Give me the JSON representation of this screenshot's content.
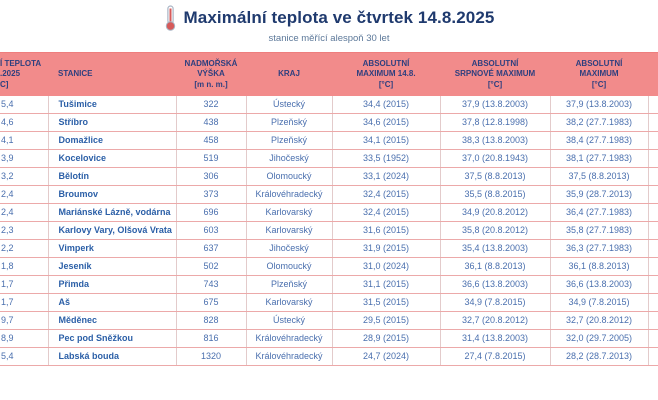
{
  "page": {
    "title": "Maximální teplota ve čtvrtek 14.8.2025",
    "subtitle": "stanice měřící alespoň 30 let",
    "icon": "thermometer-icon"
  },
  "colors": {
    "header_bg": "#F28B8B",
    "header_top_border": "#EE7E7E",
    "title_text": "#1F3A6E",
    "subtitle_text": "#5C7899",
    "header_text": "#2E3F7F",
    "cell_text": "#4A6FAE",
    "station_text": "#2B5FA7",
    "row_border": "#ECA9A9",
    "column_border": "#E3CBCB",
    "thermometer_red": "#D65A5A"
  },
  "chart_data": {
    "type": "table",
    "title": "Maximální teplota ve čtvrtek 14.8.2025",
    "subtitle": "stanice měřící alespoň 30 let",
    "note_layout": "first column is clipped by the left edge of the screenshot; header and values show only their right-hand parts",
    "columns": [
      {
        "id": "max-temp-today",
        "lines": [
          "Í TEPLOTA",
          ".2025",
          "C]"
        ]
      },
      {
        "id": "station",
        "lines": [
          "STANICE"
        ]
      },
      {
        "id": "altitude",
        "lines": [
          "NADMOŘSKÁ",
          "VÝŠKA",
          "[m n. m.]"
        ]
      },
      {
        "id": "region",
        "lines": [
          "KRAJ"
        ]
      },
      {
        "id": "abs-max-14-8",
        "lines": [
          "ABSOLUTNÍ",
          "MAXIMUM 14.8.",
          "[°C]"
        ]
      },
      {
        "id": "abs-aug-max",
        "lines": [
          "ABSOLUTNÍ",
          "SRPNOVÉ MAXIMUM",
          "[°C]"
        ]
      },
      {
        "id": "abs-max",
        "lines": [
          "ABSOLUTNÍ",
          "MAXIMUM",
          "[°C]"
        ]
      }
    ],
    "rows": [
      [
        "5,4",
        "Tušimice",
        "322",
        "Ústecký",
        "34,4 (2015)",
        "37,9 (13.8.2003)",
        "37,9 (13.8.2003)"
      ],
      [
        "4,6",
        "Stříbro",
        "438",
        "Plzeňský",
        "34,6 (2015)",
        "37,8 (12.8.1998)",
        "38,2 (27.7.1983)"
      ],
      [
        "4,1",
        "Domažlice",
        "458",
        "Plzeňský",
        "34,1 (2015)",
        "38,3 (13.8.2003)",
        "38,4 (27.7.1983)"
      ],
      [
        "3,9",
        "Kocelovice",
        "519",
        "Jihočeský",
        "33,5 (1952)",
        "37,0 (20.8.1943)",
        "38,1 (27.7.1983)"
      ],
      [
        "3,2",
        "Bělotín",
        "306",
        "Olomoucký",
        "33,1 (2024)",
        "37,5 (8.8.2013)",
        "37,5 (8.8.2013)"
      ],
      [
        "2,4",
        "Broumov",
        "373",
        "Královéhradecký",
        "32,4 (2015)",
        "35,5 (8.8.2015)",
        "35,9 (28.7.2013)"
      ],
      [
        "2,4",
        "Mariánské Lázně, vodárna",
        "696",
        "Karlovarský",
        "32,4 (2015)",
        "34,9 (20.8.2012)",
        "36,4 (27.7.1983)"
      ],
      [
        "2,3",
        "Karlovy Vary, Olšová Vrata",
        "603",
        "Karlovarský",
        "31,6 (2015)",
        "35,8 (20.8.2012)",
        "35,8 (27.7.1983)"
      ],
      [
        "2,2",
        "Vimperk",
        "637",
        "Jihočeský",
        "31,9 (2015)",
        "35,4 (13.8.2003)",
        "36,3 (27.7.1983)"
      ],
      [
        "1,8",
        "Jeseník",
        "502",
        "Olomoucký",
        "31,0 (2024)",
        "36,1 (8.8.2013)",
        "36,1 (8.8.2013)"
      ],
      [
        "1,7",
        "Přimda",
        "743",
        "Plzeňský",
        "31,1 (2015)",
        "36,6 (13.8.2003)",
        "36,6 (13.8.2003)"
      ],
      [
        "1,7",
        "Aš",
        "675",
        "Karlovarský",
        "31,5 (2015)",
        "34,9 (7.8.2015)",
        "34,9 (7.8.2015)"
      ],
      [
        "9,7",
        "Měděnec",
        "828",
        "Ústecký",
        "29,5 (2015)",
        "32,7 (20.8.2012)",
        "32,7 (20.8.2012)"
      ],
      [
        "8,9",
        "Pec pod Sněžkou",
        "816",
        "Královéhradecký",
        "28,9 (2015)",
        "31,4 (13.8.2003)",
        "32,0 (29.7.2005)"
      ],
      [
        "5,4",
        "Labská bouda",
        "1320",
        "Královéhradecký",
        "24,7 (2024)",
        "27,4 (7.8.2015)",
        "28,2 (28.7.2013)"
      ]
    ]
  }
}
